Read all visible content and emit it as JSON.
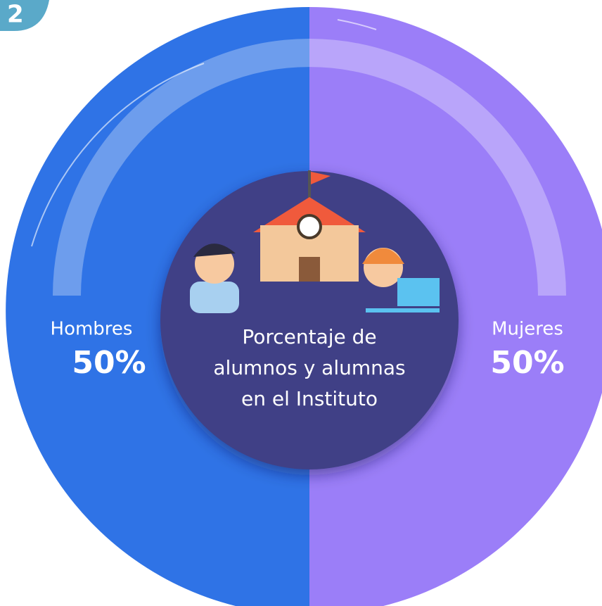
{
  "badge": "2",
  "chart_data": {
    "type": "pie",
    "title_lines": [
      "Porcentaje de",
      "alumnos y alumnas",
      "en el Instituto"
    ],
    "categories": [
      "Hombres",
      "Mujeres"
    ],
    "values": [
      50,
      50
    ],
    "value_labels": [
      "50%",
      "50%"
    ],
    "colors": [
      "#2f73e6",
      "#9b7ef8"
    ]
  }
}
